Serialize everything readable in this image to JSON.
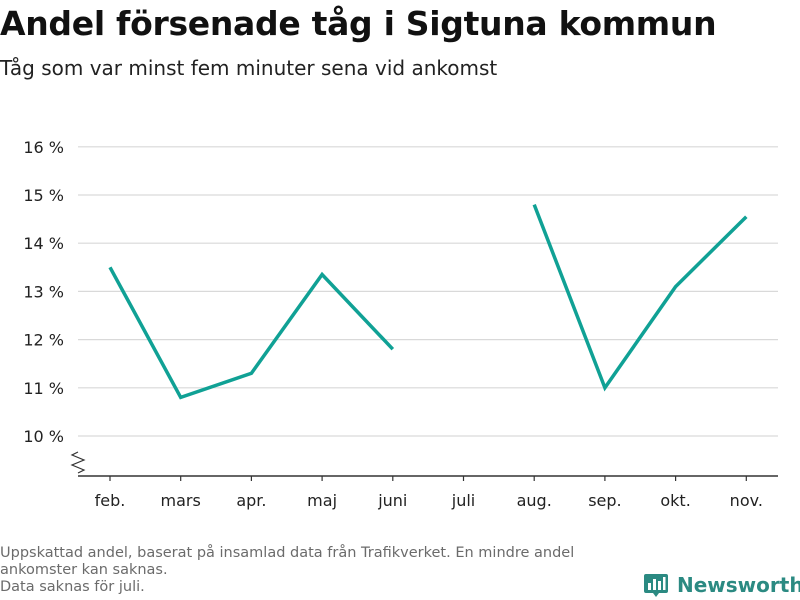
{
  "header": {
    "title": "Andel försenade tåg i Sigtuna kommun",
    "subtitle": "Tåg som var minst fem minuter sena vid ankomst"
  },
  "footnote": {
    "line1": "Uppskattad andel, baserat på insamlad data från Trafikverket. En mindre andel",
    "line2": "ankomster kan saknas.",
    "line3": "Data saknas för juli."
  },
  "brand": {
    "name": "Newsworthy",
    "icon": "newsworthy-logo-icon",
    "color": "#2b8a82"
  },
  "chart_data": {
    "type": "line",
    "title": "Andel försenade tåg i Sigtuna kommun",
    "subtitle": "Tåg som var minst fem minuter sena vid ankomst",
    "xlabel": "",
    "ylabel": "",
    "categories": [
      "feb.",
      "mars",
      "apr.",
      "maj",
      "juni",
      "juli",
      "aug.",
      "sep.",
      "okt.",
      "nov."
    ],
    "series": [
      {
        "values": [
          13.5,
          10.8,
          11.3,
          13.35,
          11.8,
          null,
          14.8,
          11.0,
          13.1,
          14.55
        ],
        "color": "#10a195"
      }
    ],
    "y_ticks": [
      10,
      11,
      12,
      13,
      14,
      15,
      16
    ],
    "y_tick_labels": [
      "10 %",
      "11 %",
      "12 %",
      "13 %",
      "14 %",
      "15 %",
      "16 %"
    ],
    "ylim": [
      9.2,
      16
    ],
    "y_axis_break": true,
    "grid": "horizontal",
    "legend": "none"
  }
}
